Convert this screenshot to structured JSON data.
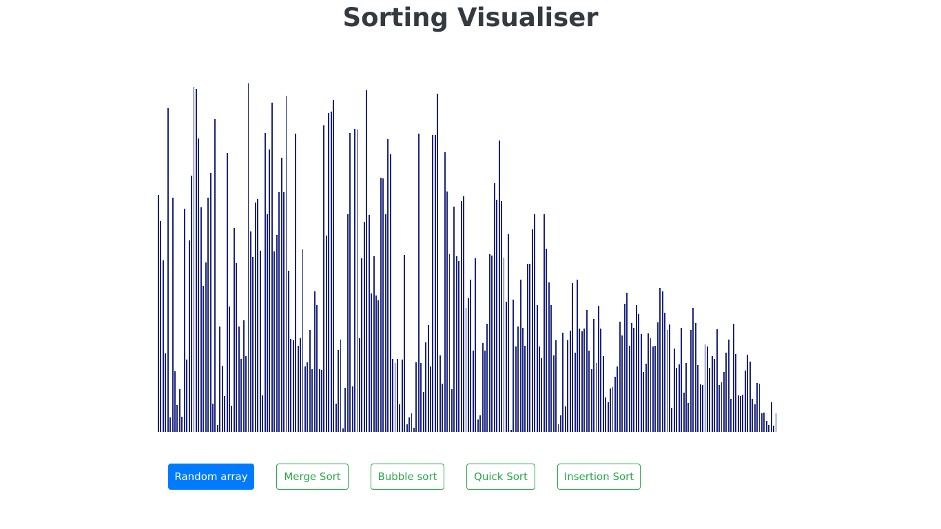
{
  "header": {
    "title": "Sorting Visualiser"
  },
  "colors": {
    "bar": "#1a237e",
    "primary": "#007bff",
    "outline": "#28a745",
    "title": "#343a40"
  },
  "array": {
    "max_value": 500,
    "values": [
      333,
      296,
      241,
      110,
      455,
      20,
      329,
      85,
      38,
      60,
      21,
      313,
      102,
      269,
      360,
      485,
      482,
      412,
      315,
      205,
      238,
      329,
      364,
      40,
      439,
      10,
      148,
      93,
      50,
      392,
      176,
      37,
      286,
      237,
      148,
      103,
      157,
      106,
      489,
      281,
      246,
      322,
      327,
      254,
      51,
      420,
      306,
      397,
      462,
      253,
      277,
      337,
      385,
      337,
      472,
      226,
      131,
      129,
      419,
      121,
      132,
      256,
      92,
      98,
      143,
      88,
      197,
      178,
      88,
      87,
      430,
      276,
      448,
      450,
      466,
      40,
      115,
      130,
      5,
      62,
      306,
      420,
      64,
      426,
      425,
      132,
      244,
      295,
      480,
      305,
      194,
      247,
      192,
      185,
      357,
      356,
      306,
      411,
      390,
      103,
      97,
      103,
      39,
      102,
      249,
      11,
      20,
      26,
      6,
      98,
      419,
      97,
      56,
      126,
      150,
      92,
      417,
      417,
      475,
      107,
      68,
      393,
      338,
      250,
      60,
      316,
      247,
      240,
      324,
      331,
      174,
      188,
      214,
      114,
      244,
      17,
      23,
      125,
      114,
      152,
      250,
      248,
      349,
      326,
      409,
      324,
      245,
      183,
      278,
      3,
      186,
      120,
      148,
      214,
      146,
      121,
      236,
      236,
      284,
      306,
      178,
      120,
      104,
      306,
      257,
      210,
      178,
      107,
      129,
      11,
      23,
      139,
      36,
      129,
      142,
      209,
      111,
      214,
      145,
      141,
      145,
      171,
      114,
      88,
      159,
      97,
      177,
      145,
      106,
      48,
      42,
      61,
      63,
      77,
      92,
      155,
      135,
      180,
      195,
      121,
      153,
      146,
      178,
      165,
      137,
      84,
      96,
      138,
      132,
      120,
      121,
      154,
      202,
      197,
      167,
      143,
      151,
      34,
      117,
      90,
      95,
      146,
      55,
      97,
      41,
      143,
      174,
      153,
      94,
      67,
      66,
      123,
      120,
      90,
      106,
      103,
      144,
      66,
      70,
      84,
      111,
      130,
      46,
      152,
      109,
      51,
      50,
      52,
      86,
      108,
      99,
      46,
      39,
      69,
      68,
      26,
      27,
      16,
      10,
      42,
      9,
      26
    ]
  },
  "controls": {
    "random_array": "Random array",
    "merge_sort": "Merge Sort",
    "bubble_sort": "Bubble sort",
    "quick_sort": "Quick Sort",
    "insertion_sort": "Insertion Sort"
  }
}
